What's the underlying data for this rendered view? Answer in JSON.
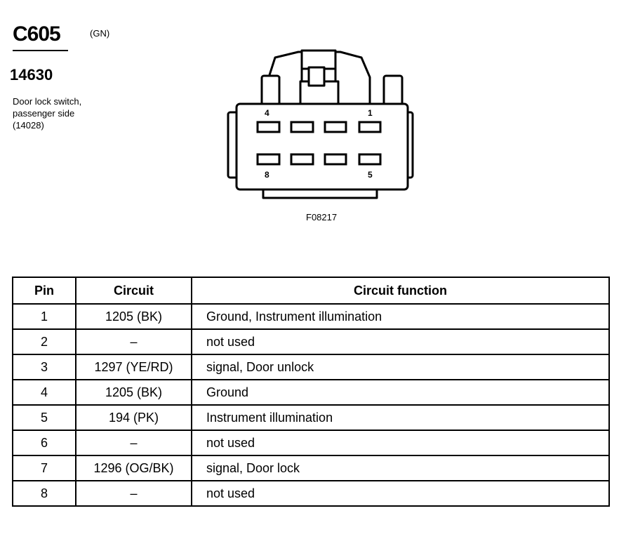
{
  "connector": {
    "id": "C605",
    "color": "(GN)",
    "part_number": "14630",
    "description": [
      "Door lock switch,",
      "passenger side",
      "(14028)"
    ],
    "figure_id": "F08217",
    "pin_labels": {
      "top_left": "4",
      "top_right": "1",
      "bottom_left": "8",
      "bottom_right": "5"
    }
  },
  "table": {
    "headers": [
      "Pin",
      "Circuit",
      "Circuit function"
    ],
    "rows": [
      {
        "pin": "1",
        "circuit": "1205 (BK)",
        "function": "Ground, Instrument illumination"
      },
      {
        "pin": "2",
        "circuit": "–",
        "function": "not used"
      },
      {
        "pin": "3",
        "circuit": "1297 (YE/RD)",
        "function": "signal, Door unlock"
      },
      {
        "pin": "4",
        "circuit": "1205 (BK)",
        "function": "Ground"
      },
      {
        "pin": "5",
        "circuit": "194 (PK)",
        "function": "Instrument illumination"
      },
      {
        "pin": "6",
        "circuit": "–",
        "function": "not used"
      },
      {
        "pin": "7",
        "circuit": "1296 (OG/BK)",
        "function": "signal, Door lock"
      },
      {
        "pin": "8",
        "circuit": "–",
        "function": "not used"
      }
    ]
  }
}
